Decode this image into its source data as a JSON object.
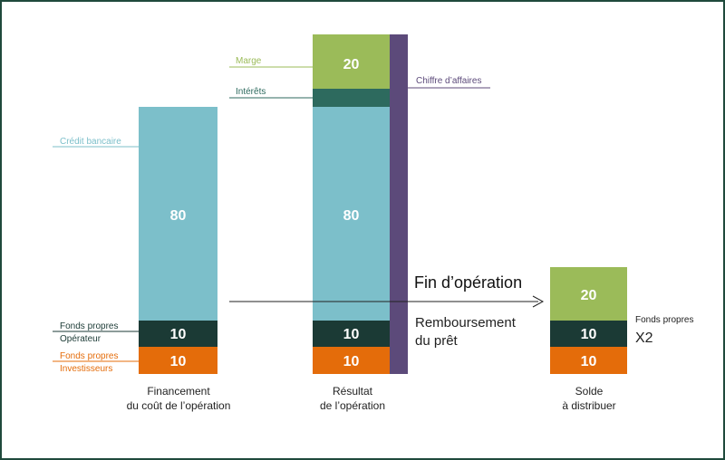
{
  "colors": {
    "light_blue": "#7cbfca",
    "dark_green": "#1b3a35",
    "teal": "#2d6a5e",
    "orange": "#e46c0a",
    "light_green": "#9bbb59",
    "purple": "#5c4a7a",
    "border": "#1f4a3c"
  },
  "columns": {
    "financement": {
      "caption_line1": "Financement",
      "caption_line2": "du coût de l’opération",
      "bar_credit_value": "80",
      "bar_fp_operateur_value": "10",
      "bar_fp_investisseurs_value": "10"
    },
    "resultat": {
      "caption_line1": "Résultat",
      "caption_line2": "de l’opération",
      "bar_marge_value": "20",
      "bar_credit_value": "80",
      "bar_operateur_value": "10",
      "bar_investisseurs_value": "10"
    },
    "solde": {
      "caption_line1": "Solde",
      "caption_line2": "à distribuer",
      "bar_top_value": "20",
      "bar_mid_value": "10",
      "bar_bottom_value": "10"
    }
  },
  "labels": {
    "credit_bancaire": "Crédit bancaire",
    "fp_operateur_line1": "Fonds propres",
    "fp_operateur_line2": "Opérateur",
    "fp_investisseurs_line1": "Fonds propres",
    "fp_investisseurs_line2": "Investisseurs",
    "marge": "Marge",
    "interets": "Intérêts",
    "chiffre_affaires": "Chiffre d’affaires",
    "fin_operation": "Fin d’opération",
    "remboursement_line1": "Remboursement",
    "remboursement_line2": "du prêt",
    "fonds_propres_solde": "Fonds propres",
    "multiplier": "X2"
  }
}
